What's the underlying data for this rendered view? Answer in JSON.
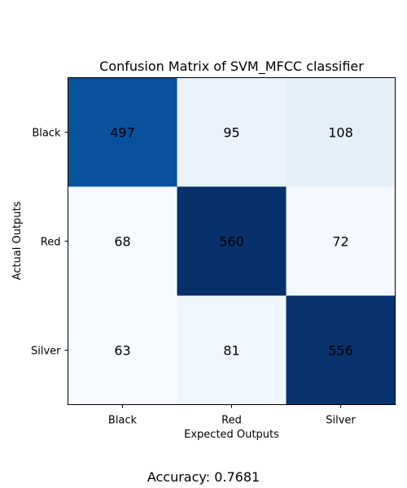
{
  "chart_data": {
    "type": "heatmap",
    "title": "Confusion Matrix of SVM_MFCC classifier",
    "xlabel": "Expected Outputs",
    "ylabel": "Actual Outputs",
    "x_categories": [
      "Black",
      "Red",
      "Silver"
    ],
    "y_categories": [
      "Black",
      "Red",
      "Silver"
    ],
    "values": [
      [
        497,
        95,
        108
      ],
      [
        68,
        560,
        72
      ],
      [
        63,
        81,
        556
      ]
    ],
    "colormap": "Blues",
    "grid": false
  },
  "footer": {
    "accuracy_text": "Accuracy: 0.7681"
  }
}
